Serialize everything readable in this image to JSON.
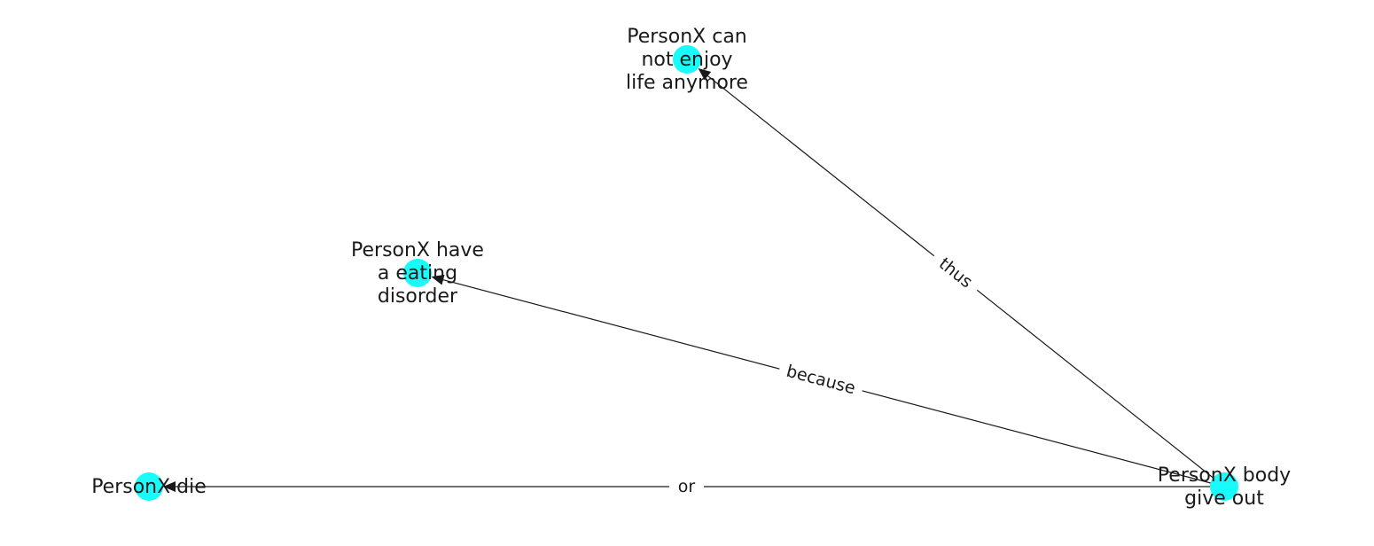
{
  "diagram": {
    "node_color": "#19fbfb",
    "edge_color": "#1a1a1a",
    "nodes": [
      {
        "id": "n_enjoy",
        "label_lines": [
          "PersonX can",
          "not enjoy",
          "life anymore"
        ]
      },
      {
        "id": "n_eating",
        "label_lines": [
          "PersonX have",
          "a eating",
          "disorder"
        ]
      },
      {
        "id": "n_die",
        "label_lines": [
          "PersonX die"
        ]
      },
      {
        "id": "n_body",
        "label_lines": [
          "PersonX body",
          "give out"
        ]
      }
    ],
    "edges": [
      {
        "id": "e_thus",
        "source": "n_body",
        "target": "n_enjoy",
        "label": "thus"
      },
      {
        "id": "e_because",
        "source": "n_body",
        "target": "n_eating",
        "label": "because"
      },
      {
        "id": "e_or",
        "source": "n_body",
        "target": "n_die",
        "label": "or"
      }
    ]
  }
}
